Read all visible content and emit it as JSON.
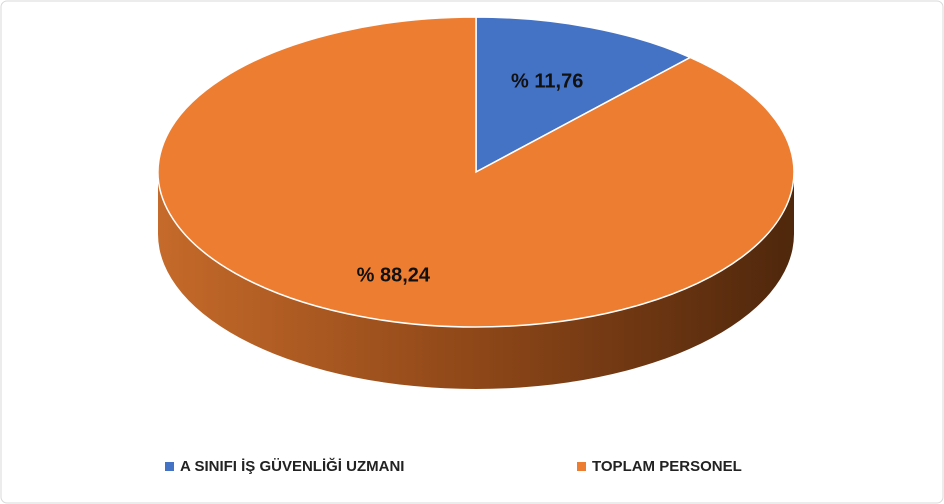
{
  "chart_data": {
    "type": "pie",
    "categories": [
      "A SINIFI İŞ GÜVENLİĞİ UZMANI",
      "TOPLAM PERSONEL"
    ],
    "values": [
      11.76,
      88.24
    ],
    "value_labels": [
      "% 11,76",
      "% 88,24"
    ],
    "colors": [
      "#4472c4",
      "#ed7d31"
    ],
    "legend": "bottom"
  }
}
